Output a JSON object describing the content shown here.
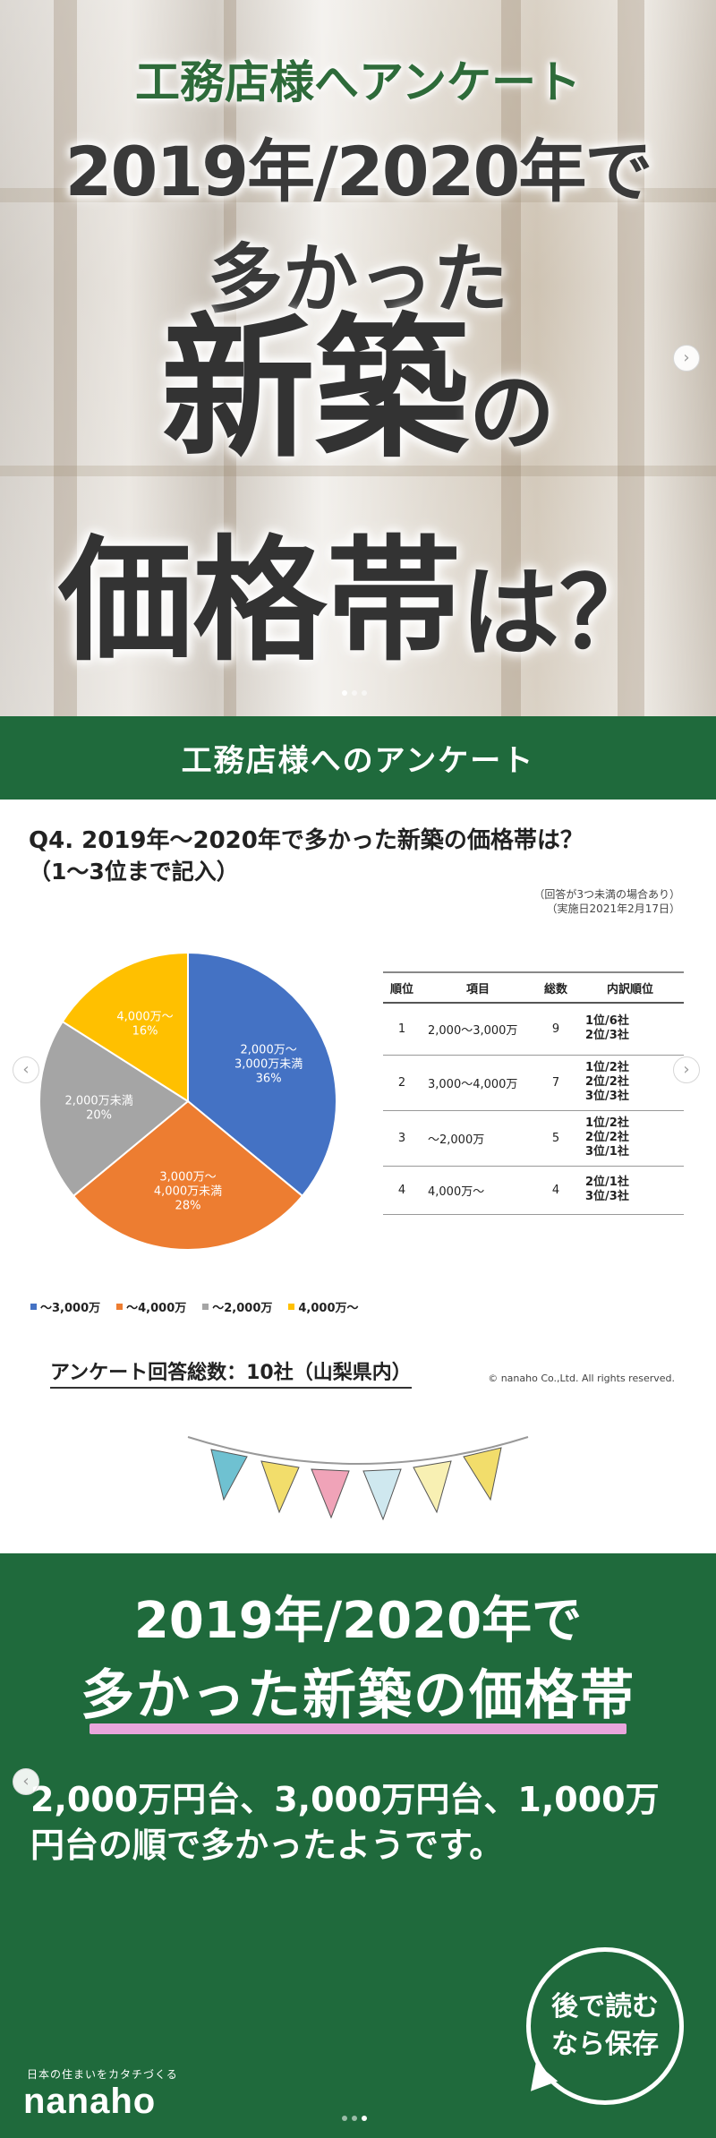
{
  "slide1": {
    "subtitle": "工務店様へアンケート",
    "line1": "2019年/2020年で",
    "line2": "多かった",
    "line3_big": "新築",
    "line3_small": "の",
    "line4_big": "価格帯",
    "line4_small": "は？",
    "next_arrow": "›"
  },
  "slide2": {
    "header": "工務店様へのアンケート",
    "question_line1": "Q4. 2019年～2020年で多かった新築の価格帯は？",
    "question_line2": "（1～3位まで記入）",
    "note_line1": "（回答が3つ未満の場合あり）",
    "note_line2": "（実施日2021年2月17日）",
    "prev_arrow": "‹",
    "next_arrow": "›",
    "table": {
      "headers": [
        "順位",
        "項目",
        "総数",
        "内訳順位"
      ],
      "rows": [
        {
          "rank": "1",
          "item": "2,000～3,000万",
          "total": "9",
          "breakdown": [
            "1位/6社",
            "2位/3社"
          ]
        },
        {
          "rank": "2",
          "item": "3,000～4,000万",
          "total": "7",
          "breakdown": [
            "1位/2社",
            "2位/2社",
            "3位/3社"
          ]
        },
        {
          "rank": "3",
          "item": "～2,000万",
          "total": "5",
          "breakdown": [
            "1位/2社",
            "2位/2社",
            "3位/1社"
          ]
        },
        {
          "rank": "4",
          "item": "4,000万～",
          "total": "4",
          "breakdown": [
            "2位/1社",
            "3位/3社"
          ]
        }
      ]
    },
    "total_label": "アンケート回答総数：10社（山梨県内）",
    "copyright": "© nanaho Co.,Ltd. All rights reserved."
  },
  "chart_data": {
    "type": "pie",
    "categories": [
      "～3,000万",
      "～4,000万",
      "～2,000万",
      "4,000万～"
    ],
    "values": [
      36,
      28,
      20,
      16
    ],
    "slice_labels": [
      [
        "2,000万～",
        "3,000万未満",
        "36%"
      ],
      [
        "3,000万～",
        "4,000万未満",
        "28%"
      ],
      [
        "2,000万未満",
        "20%"
      ],
      [
        "4,000万～",
        "16%"
      ]
    ],
    "colors": [
      "#4472c4",
      "#ed7d31",
      "#a5a5a5",
      "#ffc000"
    ],
    "legend": [
      "～3,000万",
      "～4,000万",
      "～2,000万",
      "4,000万～"
    ],
    "legend_position": "bottom-left"
  },
  "slide3": {
    "title_line1": "2019年/2020年で",
    "title_line2": "多かった新築の価格帯",
    "body": "2,000万円台、3,000万円台、1,000万円台の順で多かったようです。",
    "brand_tagline": "日本の住まいをカタチづくる",
    "brand_logo": "nanaho",
    "save_line1": "後で読む",
    "save_line2": "なら保存",
    "prev_arrow": "‹",
    "accent_color": "#e8a6dc",
    "bg_color": "#1f6a3c"
  }
}
